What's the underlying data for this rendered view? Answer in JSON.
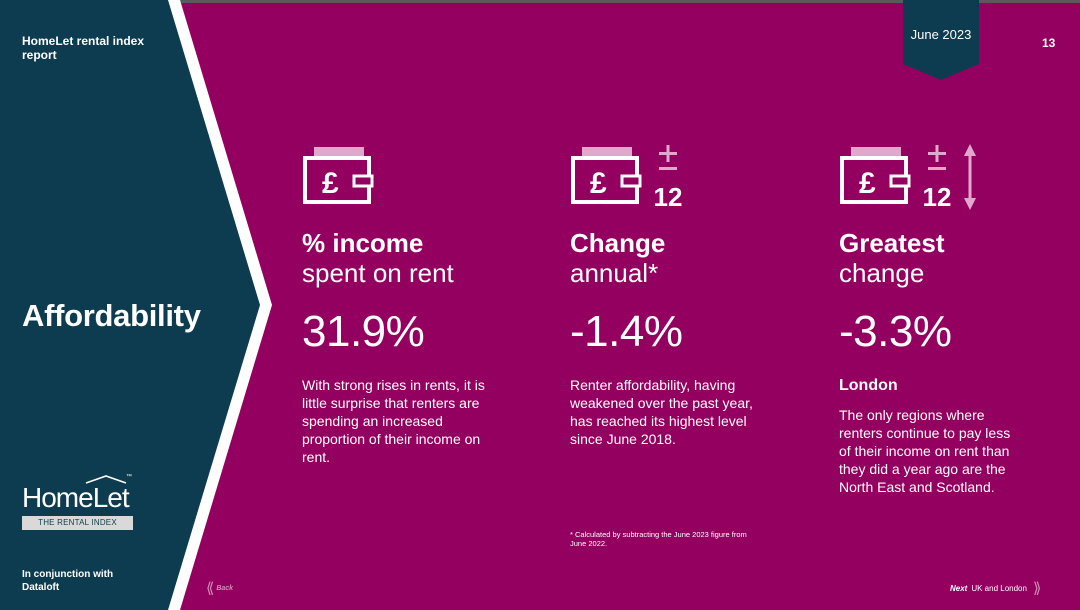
{
  "colors": {
    "background": "#94005f",
    "panel": "#0d3b4f",
    "chevron_edge": "#ffffff",
    "icon_light": "#ffffff",
    "icon_pink": "#e0a8cc"
  },
  "header": {
    "report_title": "HomeLet rental index report",
    "date": "June 2023",
    "page_number": "13"
  },
  "section": {
    "title": "Affordability"
  },
  "logo": {
    "wordmark": "HomeLet",
    "trademark": "™",
    "strapline": "THE RENTAL INDEX"
  },
  "footer": {
    "conjunction": "In conjunction with Dataloft",
    "back_label": "Back",
    "next_bold": "Next",
    "next_label": "UK and London"
  },
  "stats": [
    {
      "icons": [
        "wallet-pound-icon"
      ],
      "heading": "% income",
      "subheading": "spent on rent",
      "value": "31.9%",
      "description": "With strong rises in rents, it is little surprise that renters are spending an increased proportion of their income on rent."
    },
    {
      "icons": [
        "wallet-pound-icon",
        "plus-minus-12-icon"
      ],
      "pm_number": "12",
      "heading": "Change",
      "subheading": "annual*",
      "value": "-1.4%",
      "description": "Renter affordability, having weakened over the past year, has reached its highest level since June 2018."
    },
    {
      "icons": [
        "wallet-pound-icon",
        "plus-minus-12-icon",
        "up-down-arrow-icon"
      ],
      "pm_number": "12",
      "heading": "Greatest",
      "subheading": "change",
      "value": "-3.3%",
      "region": "London",
      "description": "The only regions where renters continue to pay less of their income on rent than they did a year ago are the North East and Scotland."
    }
  ],
  "footnote": "* Calculated by subtracting the June 2023 figure from June 2022."
}
